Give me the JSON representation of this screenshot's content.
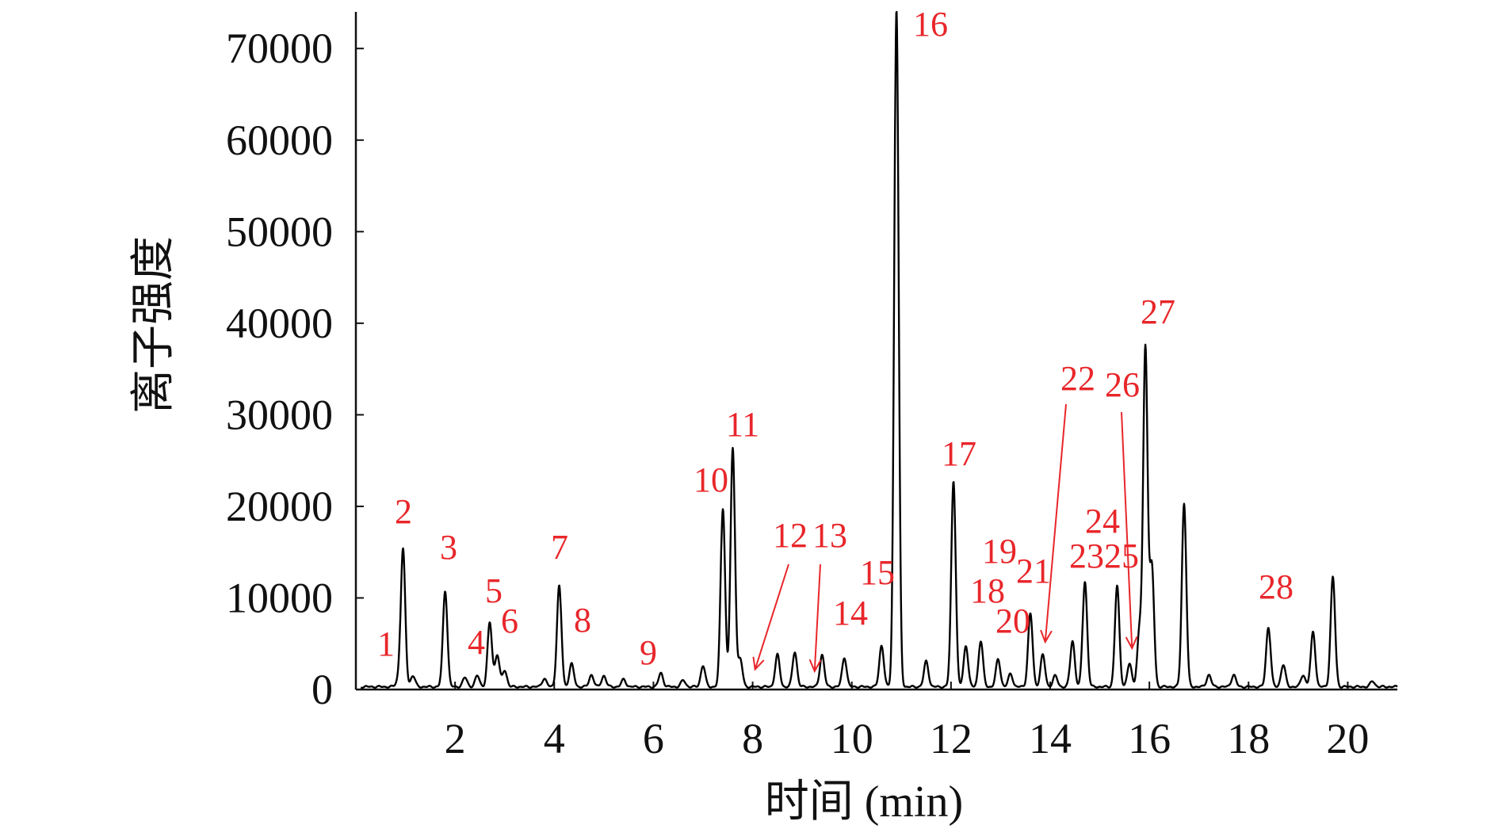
{
  "chart_data": {
    "type": "line",
    "title": "",
    "xlabel": "时间 (min)",
    "ylabel": "离子强度",
    "xlim": [
      0,
      21
    ],
    "ylim": [
      0,
      74000
    ],
    "x_ticks": [
      2,
      4,
      6,
      8,
      10,
      12,
      14,
      16,
      18,
      20
    ],
    "y_ticks": [
      0,
      10000,
      20000,
      30000,
      40000,
      50000,
      60000,
      70000
    ],
    "grid": false,
    "legend": "none",
    "colors": {
      "line": "#000000",
      "annotation": "#e8262a",
      "axis": "#111111"
    },
    "baseline": 300,
    "peaks": [
      {
        "label": "1",
        "x": 0.85,
        "y": 600
      },
      {
        "label": "2",
        "x": 0.95,
        "y": 15000
      },
      {
        "label": "3",
        "x": 1.8,
        "y": 10500
      },
      {
        "label": "4",
        "x": 2.45,
        "y": 1200
      },
      {
        "label": "5",
        "x": 2.7,
        "y": 7000
      },
      {
        "label": "6",
        "x": 2.85,
        "y": 3500
      },
      {
        "label": "7",
        "x": 4.1,
        "y": 11000
      },
      {
        "label": "8",
        "x": 4.35,
        "y": 2500
      },
      {
        "label": "9",
        "x": 6.15,
        "y": 1500
      },
      {
        "label": "10",
        "x": 7.4,
        "y": 19500
      },
      {
        "label": "11",
        "x": 7.6,
        "y": 26000
      },
      {
        "label": "12",
        "x": 8.5,
        "y": 3500
      },
      {
        "label": "13",
        "x": 9.4,
        "y": 3500
      },
      {
        "label": "14",
        "x": 9.85,
        "y": 3200
      },
      {
        "label": "15",
        "x": 10.6,
        "y": 4500
      },
      {
        "label": "16",
        "x": 10.9,
        "y": 74000
      },
      {
        "label": "17",
        "x": 12.05,
        "y": 22500
      },
      {
        "label": "18",
        "x": 12.3,
        "y": 4500
      },
      {
        "label": "19",
        "x": 12.6,
        "y": 5000
      },
      {
        "label": "20",
        "x": 12.95,
        "y": 3000
      },
      {
        "label": "21",
        "x": 13.6,
        "y": 8000
      },
      {
        "label": "22",
        "x": 13.85,
        "y": 3500
      },
      {
        "label": "23",
        "x": 14.45,
        "y": 5000
      },
      {
        "label": "24",
        "x": 14.7,
        "y": 11500
      },
      {
        "label": "25",
        "x": 15.35,
        "y": 11000
      },
      {
        "label": "26",
        "x": 15.6,
        "y": 2500
      },
      {
        "label": "27",
        "x": 15.92,
        "y": 37000
      },
      {
        "label": "28",
        "x": 18.4,
        "y": 6500
      }
    ],
    "unlabeled_peaks": [
      {
        "x": 1.15,
        "y": 1200
      },
      {
        "x": 2.2,
        "y": 1000
      },
      {
        "x": 3.0,
        "y": 1800
      },
      {
        "x": 3.8,
        "y": 900
      },
      {
        "x": 4.75,
        "y": 1300
      },
      {
        "x": 5.0,
        "y": 1200
      },
      {
        "x": 5.4,
        "y": 800
      },
      {
        "x": 6.6,
        "y": 700
      },
      {
        "x": 7.0,
        "y": 2300
      },
      {
        "x": 7.75,
        "y": 3000
      },
      {
        "x": 8.85,
        "y": 3800
      },
      {
        "x": 11.5,
        "y": 2800
      },
      {
        "x": 13.2,
        "y": 1400
      },
      {
        "x": 14.1,
        "y": 1200
      },
      {
        "x": 15.8,
        "y": 6000
      },
      {
        "x": 16.05,
        "y": 13000
      },
      {
        "x": 16.7,
        "y": 20000
      },
      {
        "x": 17.2,
        "y": 1300
      },
      {
        "x": 17.7,
        "y": 1300
      },
      {
        "x": 18.7,
        "y": 2400
      },
      {
        "x": 19.1,
        "y": 1300
      },
      {
        "x": 19.3,
        "y": 6000
      },
      {
        "x": 19.7,
        "y": 12000
      },
      {
        "x": 20.5,
        "y": 600
      }
    ],
    "arrows": [
      {
        "label": "12",
        "target_x": 8.05,
        "target_y": 2200
      },
      {
        "label": "13",
        "target_x": 9.25,
        "target_y": 2000
      },
      {
        "label": "22",
        "target_x": 13.9,
        "target_y": 5200
      },
      {
        "label": "26",
        "target_x": 15.65,
        "target_y": 4500
      }
    ]
  }
}
